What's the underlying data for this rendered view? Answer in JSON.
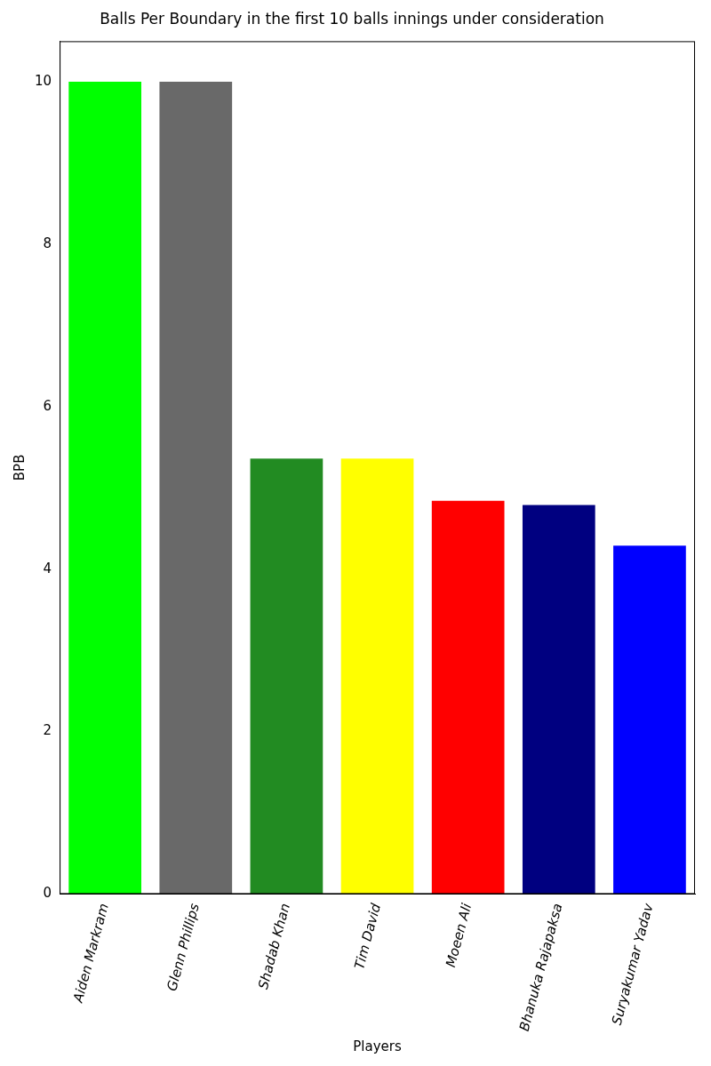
{
  "chart_data": {
    "type": "bar",
    "title": "Balls Per Boundary in the first 10 balls innings under consideration",
    "x_label": "Players",
    "y_label": "BPB",
    "categories": [
      "Aiden Markram",
      "Glenn Phillips",
      "Shadab Khan",
      "Tim David",
      "Moeen Ali",
      "Bhanuka Rajapaksa",
      "Suryakumar Yadav"
    ],
    "values": [
      10,
      10,
      5.36,
      5.36,
      4.84,
      4.79,
      4.29
    ],
    "colors": [
      "#00ff00",
      "#696969",
      "#228b22",
      "#ffff00",
      "#ff0000",
      "#000080",
      "#0000ff"
    ],
    "ylim": [
      0,
      10.5
    ],
    "yticks": [
      0,
      2,
      4,
      6,
      8,
      10
    ],
    "grid": false
  }
}
